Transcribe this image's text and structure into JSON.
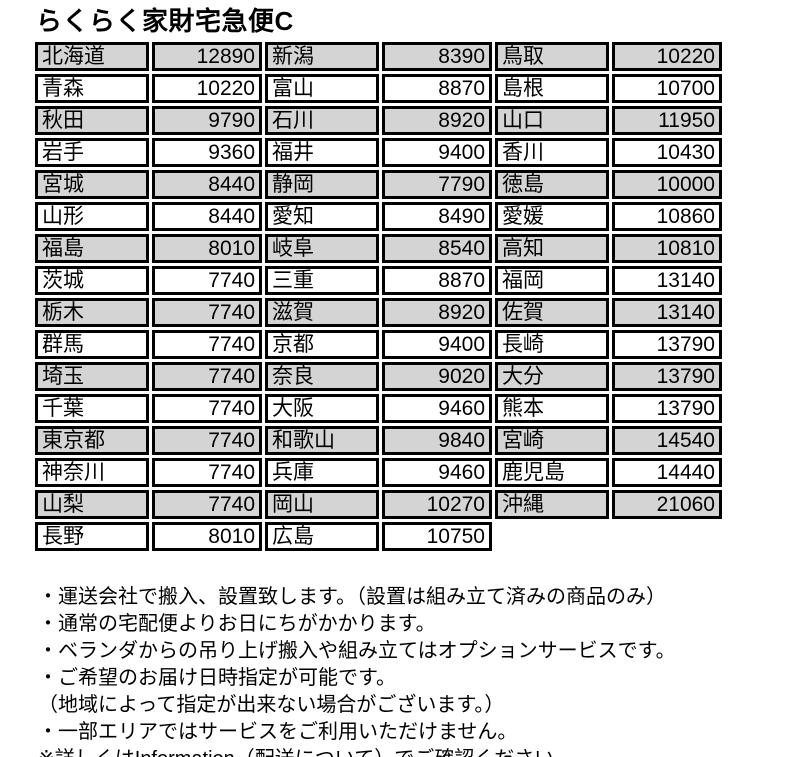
{
  "title": "らくらく家財宅急便C",
  "colors": {
    "row_shaded": "#d4d4d4",
    "row_plain": "#ffffff",
    "border": "#000000",
    "text": "#000000"
  },
  "table": {
    "groups": [
      {
        "rows": [
          {
            "name": "北海道",
            "price": "12890"
          },
          {
            "name": "青森",
            "price": "10220"
          },
          {
            "name": "秋田",
            "price": "9790"
          },
          {
            "name": "岩手",
            "price": "9360"
          },
          {
            "name": "宮城",
            "price": "8440"
          },
          {
            "name": "山形",
            "price": "8440"
          },
          {
            "name": "福島",
            "price": "8010"
          },
          {
            "name": "茨城",
            "price": "7740"
          },
          {
            "name": "栃木",
            "price": "7740"
          },
          {
            "name": "群馬",
            "price": "7740"
          },
          {
            "name": "埼玉",
            "price": "7740"
          },
          {
            "name": "千葉",
            "price": "7740"
          },
          {
            "name": "東京都",
            "price": "7740"
          },
          {
            "name": "神奈川",
            "price": "7740"
          },
          {
            "name": "山梨",
            "price": "7740"
          },
          {
            "name": "長野",
            "price": "8010"
          }
        ]
      },
      {
        "rows": [
          {
            "name": "新潟",
            "price": "8390"
          },
          {
            "name": "富山",
            "price": "8870"
          },
          {
            "name": "石川",
            "price": "8920"
          },
          {
            "name": "福井",
            "price": "9400"
          },
          {
            "name": "静岡",
            "price": "7790"
          },
          {
            "name": "愛知",
            "price": "8490"
          },
          {
            "name": "岐阜",
            "price": "8540"
          },
          {
            "name": "三重",
            "price": "8870"
          },
          {
            "name": "滋賀",
            "price": "8920"
          },
          {
            "name": "京都",
            "price": "9400"
          },
          {
            "name": "奈良",
            "price": "9020"
          },
          {
            "name": "大阪",
            "price": "9460"
          },
          {
            "name": "和歌山",
            "price": "9840"
          },
          {
            "name": "兵庫",
            "price": "9460"
          },
          {
            "name": "岡山",
            "price": "10270"
          },
          {
            "name": "広島",
            "price": "10750"
          }
        ]
      },
      {
        "rows": [
          {
            "name": "鳥取",
            "price": "10220"
          },
          {
            "name": "島根",
            "price": "10700"
          },
          {
            "name": "山口",
            "price": "11950"
          },
          {
            "name": "香川",
            "price": "10430"
          },
          {
            "name": "徳島",
            "price": "10000"
          },
          {
            "name": "愛媛",
            "price": "10860"
          },
          {
            "name": "高知",
            "price": "10810"
          },
          {
            "name": "福岡",
            "price": "13140"
          },
          {
            "name": "佐賀",
            "price": "13140"
          },
          {
            "name": "長崎",
            "price": "13790"
          },
          {
            "name": "大分",
            "price": "13790"
          },
          {
            "name": "熊本",
            "price": "13790"
          },
          {
            "name": "宮崎",
            "price": "14540"
          },
          {
            "name": "鹿児島",
            "price": "14440"
          },
          {
            "name": "沖縄",
            "price": "21060"
          }
        ]
      }
    ]
  },
  "notes": {
    "lines": [
      "・運送会社で搬入、設置致します。（設置は組み立て済みの商品のみ）",
      "・通常の宅配便よりお日にちがかかります。",
      "・ベランダからの吊り上げ搬入や組み立てはオプションサービスです。",
      "・ご希望のお届け日時指定が可能です。",
      "（地域によって指定が出来ない場合がございます。）",
      "・一部エリアではサービスをご利用いただけません。",
      "※詳しくはInformation（配送について）でご確認ください。"
    ]
  }
}
